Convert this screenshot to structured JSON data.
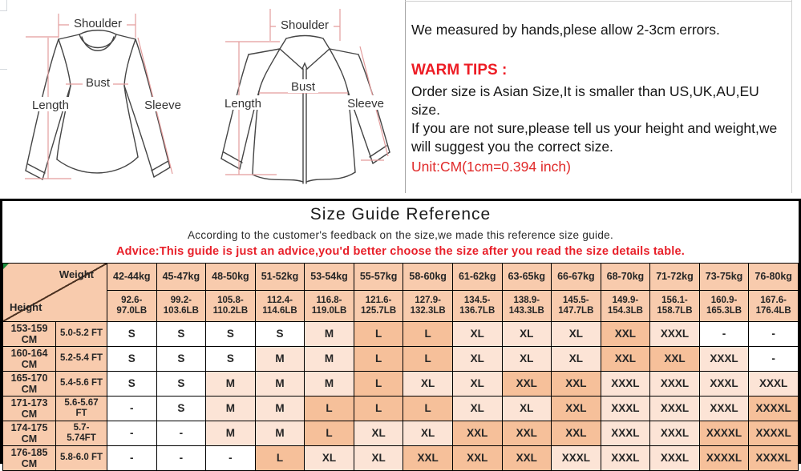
{
  "diagrams": {
    "labels": {
      "shoulder": "Shoulder",
      "bust": "Bust",
      "length": "Length",
      "sleeve": "Sleeve"
    }
  },
  "notes": {
    "measured": "We measured by hands,plese allow 2-3cm errors.",
    "warm_tips_title": "WARM TIPS :",
    "order_size": "Order size is Asian Size,It is smaller than US,UK,AU,EU size.",
    "not_sure": "If you are not sure,please tell us your height and weight,we\nwill suggest you the correct size.",
    "unit_note": "Unit:CM(1cm=0.394 inch)"
  },
  "size_guide": {
    "title": "Size Guide Reference",
    "subtitle": "According to the customer's feedback on the size,we made this reference size guide.",
    "advice": "Advice:This guide is just an advice,you'd better choose the size after you read the size details table.",
    "corner": {
      "top_right": "Weight",
      "bottom_left": "Height"
    },
    "weights_kg": [
      "42-44kg",
      "45-47kg",
      "48-50kg",
      "51-52kg",
      "53-54kg",
      "55-57kg",
      "58-60kg",
      "61-62kg",
      "63-65kg",
      "66-67kg",
      "68-70kg",
      "71-72kg",
      "73-75kg",
      "76-80kg"
    ],
    "weights_lb": [
      "92.6-\n97.0LB",
      "99.2-\n103.6LB",
      "105.8-\n110.2LB",
      "112.4-\n114.6LB",
      "116.8-\n119.0LB",
      "121.6-\n125.7LB",
      "127.9-\n132.3LB",
      "134.5-\n136.7LB",
      "138.9-\n143.3LB",
      "145.5-\n147.7LB",
      "149.9-\n154.3LB",
      "156.1-\n158.7LB",
      "160.9-\n165.3LB",
      "167.6-\n176.4LB"
    ],
    "rows": [
      {
        "height_cm": "153-159\nCM",
        "height_ft": "5.0-5.2 FT",
        "sizes": [
          "S",
          "S",
          "S",
          "S",
          "M",
          "L",
          "L",
          "XL",
          "XL",
          "XL",
          "XXL",
          "XXXL",
          "-",
          "-"
        ]
      },
      {
        "height_cm": "160-164\nCM",
        "height_ft": "5.2-5.4 FT",
        "sizes": [
          "S",
          "S",
          "S",
          "M",
          "M",
          "L",
          "L",
          "XL",
          "XL",
          "XL",
          "XXL",
          "XXL",
          "XXXL",
          "-"
        ]
      },
      {
        "height_cm": "165-170\nCM",
        "height_ft": "5.4-5.6 FT",
        "sizes": [
          "S",
          "S",
          "M",
          "M",
          "M",
          "L",
          "XL",
          "XL",
          "XXL",
          "XXL",
          "XXXL",
          "XXXL",
          "XXXL",
          "XXXL"
        ]
      },
      {
        "height_cm": "171-173\nCM",
        "height_ft": "5.6-5.67\nFT",
        "sizes": [
          "-",
          "S",
          "M",
          "M",
          "L",
          "L",
          "L",
          "XL",
          "XL",
          "XXL",
          "XXXL",
          "XXXL",
          "XXXL",
          "XXXXL"
        ]
      },
      {
        "height_cm": "174-175\nCM",
        "height_ft": "5.7-\n5.74FT",
        "sizes": [
          "-",
          "-",
          "M",
          "M",
          "L",
          "XL",
          "XL",
          "XXL",
          "XXL",
          "XXL",
          "XXXL",
          "XXXL",
          "XXXXL",
          "XXXXL"
        ]
      },
      {
        "height_cm": "176-185\nCM",
        "height_ft": "5.8-6.0 FT",
        "sizes": [
          "-",
          "-",
          "-",
          "L",
          "XL",
          "XL",
          "XXL",
          "XXL",
          "XXL",
          "XXXL",
          "XXXL",
          "XXXL",
          "XXXXL",
          "XXXXL"
        ]
      }
    ]
  },
  "colors": {
    "header_bg": "#f8cbad",
    "accent_red": "#e8202a",
    "measure_line_pink": "#e39c9c",
    "garment_stroke": "#454545",
    "size_colors": {
      "S": "#ffffff",
      "M": "#fce4d6",
      "L": "#f6c09a",
      "XL": "#fce4d6",
      "XXL": "#f6c09a",
      "XXXL": "#fce4d6",
      "XXXXL": "#f6c09a",
      "-": "#ffffff"
    }
  }
}
